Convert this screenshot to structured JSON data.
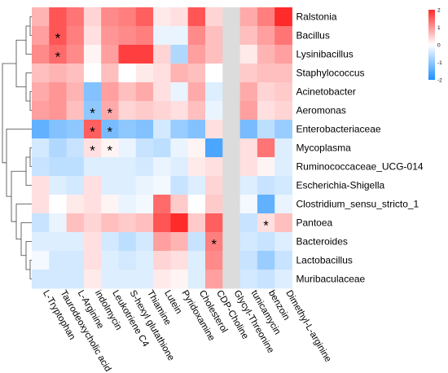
{
  "chart_data": {
    "type": "heatmap",
    "rows": [
      "Ralstonia",
      "Bacillus",
      "Lysinibacillus",
      "Staphylococcus",
      "Acinetobacter",
      "Aeromonas",
      "Enterobacteriaceae",
      "Mycoplasma",
      "Ruminococcaceae_UCG-014",
      "Escherichia-Shigella",
      "Clostridium_sensu_stricto_1",
      "Pantoea",
      "Bacteroides",
      "Lactobacillus",
      "Muribaculaceae"
    ],
    "columns": [
      "L-Tryptophan",
      "Taurodeoxycholic acid",
      "L-Arginine",
      "indolmycin",
      "Leukotriene C4",
      "S-hexyl glutathione",
      "Thiamine",
      "Lutein",
      "Pyridoxamine",
      "Cholesterol",
      "CDP-Choline",
      "Glycyl-Threonine",
      "tunicamycin",
      "benzoin",
      "Dimethyl-L-arginine"
    ],
    "values": [
      [
        0.7,
        1.6,
        1.3,
        0.4,
        1.1,
        1.2,
        1.5,
        0.2,
        0.3,
        1.6,
        0.4,
        0,
        0.8,
        1.2,
        2.0
      ],
      [
        0.9,
        1.6,
        1.2,
        0.3,
        1.0,
        1.1,
        1.2,
        -0.2,
        -0.2,
        1.1,
        0.6,
        0,
        0.6,
        0.9,
        1.3
      ],
      [
        1.1,
        1.4,
        1.1,
        0.1,
        0.9,
        1.8,
        1.8,
        0.4,
        -0.7,
        0.9,
        0.6,
        0,
        0.2,
        0.7,
        0.9
      ],
      [
        0.6,
        0.7,
        0.6,
        0.0,
        0.6,
        0.0,
        0.2,
        0.3,
        0.7,
        0.6,
        0.0,
        0,
        0.5,
        0.6,
        0.6
      ],
      [
        0.8,
        1.0,
        0.7,
        -1.1,
        0.9,
        0.6,
        0.8,
        0.3,
        -0.2,
        0.8,
        -0.3,
        0,
        0.8,
        0.4,
        0.5
      ],
      [
        0.9,
        1.0,
        0.6,
        -1.0,
        0.8,
        0.4,
        0.5,
        0.4,
        0.3,
        0.6,
        -0.2,
        0,
        0.9,
        0.3,
        0.4
      ],
      [
        -1.4,
        -1.1,
        -1.0,
        1.5,
        -1.2,
        -1.0,
        -1.1,
        -0.4,
        -0.9,
        -1.1,
        0.3,
        0,
        -1.2,
        -0.6,
        -0.9
      ],
      [
        -0.4,
        -0.7,
        -0.5,
        0.3,
        0.1,
        -0.2,
        -0.5,
        -0.6,
        -0.2,
        0.1,
        -1.6,
        0,
        0.3,
        1.3,
        -0.3
      ],
      [
        -0.5,
        -0.6,
        -0.6,
        -0.3,
        -0.3,
        -0.3,
        -0.4,
        -0.2,
        -0.3,
        0.2,
        0.3,
        0,
        0.3,
        0.1,
        -0.3
      ],
      [
        0.3,
        -0.3,
        -0.4,
        0.3,
        -0.3,
        -0.3,
        -0.2,
        -0.1,
        -0.5,
        -0.3,
        0.4,
        0,
        -0.3,
        -0.5,
        -0.4
      ],
      [
        0.3,
        0.0,
        0.2,
        0.3,
        0.1,
        -0.2,
        -0.1,
        1.4,
        0.5,
        0.0,
        0.5,
        0,
        -0.1,
        -1.4,
        -0.2
      ],
      [
        -0.5,
        -0.2,
        0.6,
        0.4,
        0.6,
        0.5,
        0.6,
        1.6,
        2.0,
        0.5,
        1.5,
        0,
        -0.5,
        0.3,
        0.6
      ],
      [
        -0.3,
        -0.3,
        -0.3,
        0.3,
        -0.4,
        -0.6,
        -0.4,
        0.9,
        0.7,
        -0.5,
        1.2,
        0,
        -0.4,
        -0.5,
        -0.3
      ],
      [
        -0.1,
        -0.4,
        -0.4,
        0.3,
        -0.3,
        -0.4,
        -0.3,
        0.4,
        0.3,
        -0.3,
        1.1,
        0,
        -0.5,
        -0.9,
        -0.5
      ],
      [
        -0.4,
        -0.4,
        -0.4,
        0.2,
        -0.3,
        -0.3,
        -0.3,
        0.2,
        0.1,
        -0.3,
        0.9,
        0,
        -0.4,
        -0.5,
        -0.3
      ]
    ],
    "significance": [
      [
        1,
        1
      ],
      [
        2,
        1
      ],
      [
        5,
        3
      ],
      [
        5,
        4
      ],
      [
        6,
        3
      ],
      [
        6,
        4
      ],
      [
        7,
        3
      ],
      [
        7,
        4
      ],
      [
        11,
        13
      ],
      [
        12,
        10
      ]
    ],
    "significance_symbol": "*",
    "colorbar": {
      "ticks": [
        2,
        1,
        0,
        -1,
        -2
      ],
      "range": [
        -2,
        2
      ],
      "low_color": "#1e90ff",
      "mid_color": "#ffffff",
      "high_color": "#ff2a2a",
      "placement": "top-right"
    },
    "zero_column_color": "#dcdcdc",
    "row_dendrogram": true,
    "grid": false
  }
}
